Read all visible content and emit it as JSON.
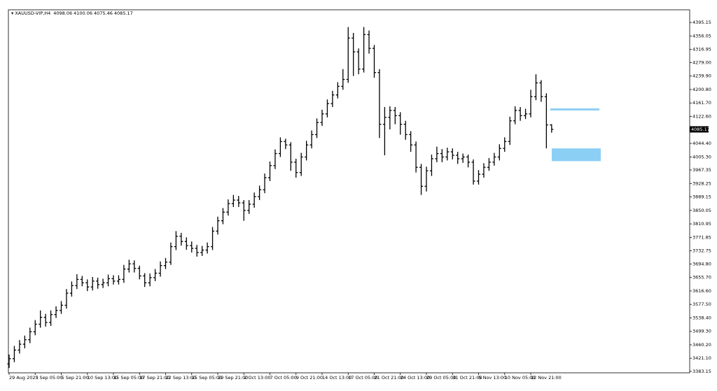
{
  "chart_data": {
    "type": "ohlc",
    "symbol": "XAUUSD-VIP,H4",
    "color": "#000000",
    "zone_color": "#8ccff5",
    "categories": [
      "29 Aug 2025",
      null,
      null,
      null,
      null,
      "3 Sep 05:00",
      null,
      null,
      null,
      null,
      "5 Sep 21:00",
      null,
      null,
      null,
      null,
      "10 Sep 13:00",
      null,
      null,
      null,
      null,
      "15 Sep 05:00",
      null,
      null,
      null,
      null,
      "17 Sep 21:00",
      null,
      null,
      null,
      null,
      "22 Sep 13:00",
      null,
      null,
      null,
      null,
      "25 Sep 05:00",
      null,
      null,
      null,
      null,
      "29 Sep 21:00",
      null,
      null,
      null,
      null,
      "2 Oct 13:00",
      null,
      null,
      null,
      null,
      "7 Oct 05:00",
      null,
      null,
      null,
      null,
      "9 Oct 21:00",
      null,
      null,
      null,
      null,
      "14 Oct 13:00",
      null,
      null,
      null,
      null,
      "17 Oct 05:00",
      null,
      null,
      null,
      null,
      "21 Oct 21:00",
      null,
      null,
      null,
      null,
      "24 Oct 13:00",
      null,
      null,
      null,
      null,
      "29 Oct 05:00",
      null,
      null,
      null,
      null,
      "31 Oct 21:00",
      null,
      null,
      null,
      null,
      "5 Nov 13:00",
      null,
      null,
      null,
      null,
      "10 Nov 05:00",
      null,
      null,
      null,
      null,
      "12 Nov 21:00",
      null,
      null,
      null,
      null
    ],
    "open": [
      3405,
      3420,
      3445,
      3462,
      3475,
      3498,
      3520,
      3540,
      3525,
      3548,
      3560,
      3575,
      3610,
      3632,
      3650,
      3640,
      3628,
      3645,
      3635,
      3640,
      3652,
      3645,
      3650,
      3680,
      3695,
      3682,
      3660,
      3640,
      3655,
      3668,
      3690,
      3700,
      3745,
      3775,
      3760,
      3748,
      3740,
      3728,
      3735,
      3745,
      3790,
      3820,
      3845,
      3870,
      3880,
      3872,
      3850,
      3868,
      3890,
      3910,
      3945,
      3980,
      4015,
      4050,
      4040,
      3990,
      3960,
      4005,
      4040,
      4070,
      4105,
      4130,
      4160,
      4185,
      4210,
      4230,
      4350,
      4310,
      4260,
      4360,
      4320,
      4250,
      4100,
      4120,
      4140,
      4125,
      4100,
      4070,
      4040,
      3975,
      3920,
      3965,
      4000,
      4015,
      4005,
      4020,
      4010,
      4000,
      4005,
      3990,
      3935,
      3955,
      3975,
      3990,
      4005,
      4030,
      4050,
      4110,
      4140,
      4125,
      4130,
      4180,
      4220,
      4180,
      4098.06
    ],
    "high": [
      3432,
      3457,
      3474,
      3487,
      3510,
      3532,
      3560,
      3550,
      3560,
      3572,
      3587,
      3622,
      3644,
      3665,
      3660,
      3650,
      3657,
      3655,
      3652,
      3664,
      3662,
      3662,
      3692,
      3707,
      3705,
      3690,
      3668,
      3667,
      3680,
      3702,
      3712,
      3757,
      3790,
      3785,
      3772,
      3760,
      3750,
      3747,
      3757,
      3802,
      3832,
      3857,
      3882,
      3895,
      3892,
      3880,
      3880,
      3902,
      3922,
      3957,
      3992,
      4027,
      4062,
      4058,
      4048,
      4000,
      4017,
      4052,
      4082,
      4117,
      4142,
      4172,
      4197,
      4222,
      4260,
      4382,
      4365,
      4320,
      4382,
      4372,
      4330,
      4260,
      4150,
      4152,
      4150,
      4135,
      4110,
      4080,
      4050,
      3985,
      3977,
      4012,
      4035,
      4028,
      4032,
      4030,
      4020,
      4015,
      4012,
      3998,
      3967,
      3987,
      4002,
      4017,
      4042,
      4062,
      4122,
      4152,
      4150,
      4145,
      4200,
      4245,
      4228,
      4190,
      4100.06
    ],
    "low": [
      3393,
      3410,
      3435,
      3450,
      3465,
      3488,
      3510,
      3513,
      3515,
      3538,
      3550,
      3565,
      3600,
      3622,
      3630,
      3616,
      3618,
      3623,
      3625,
      3630,
      3635,
      3635,
      3640,
      3670,
      3670,
      3650,
      3628,
      3630,
      3645,
      3658,
      3680,
      3692,
      3735,
      3748,
      3736,
      3728,
      3716,
      3718,
      3725,
      3735,
      3780,
      3810,
      3835,
      3860,
      3860,
      3820,
      3840,
      3858,
      3880,
      3900,
      3935,
      3970,
      4005,
      4028,
      3965,
      3945,
      3950,
      3995,
      4030,
      4060,
      4095,
      4120,
      4150,
      4175,
      4200,
      4220,
      4240,
      4245,
      4250,
      4305,
      4235,
      4060,
      4010,
      4085,
      4100,
      4070,
      4055,
      4020,
      3960,
      3895,
      3905,
      3950,
      3990,
      3990,
      3995,
      3998,
      3985,
      3988,
      3975,
      3925,
      3925,
      3945,
      3965,
      3980,
      3995,
      4020,
      4040,
      4100,
      4110,
      4115,
      4120,
      4170,
      4165,
      4030,
      4075.46
    ],
    "close": [
      3420,
      3445,
      3462,
      3475,
      3498,
      3520,
      3540,
      3525,
      3548,
      3560,
      3575,
      3610,
      3632,
      3650,
      3640,
      3628,
      3645,
      3635,
      3640,
      3652,
      3645,
      3650,
      3680,
      3695,
      3682,
      3660,
      3640,
      3655,
      3668,
      3690,
      3700,
      3745,
      3775,
      3760,
      3748,
      3740,
      3728,
      3735,
      3745,
      3790,
      3820,
      3845,
      3870,
      3880,
      3872,
      3850,
      3868,
      3890,
      3910,
      3945,
      3980,
      4015,
      4050,
      4040,
      3990,
      3960,
      4005,
      4040,
      4070,
      4105,
      4130,
      4160,
      4185,
      4210,
      4230,
      4350,
      4310,
      4260,
      4360,
      4320,
      4250,
      4100,
      4120,
      4140,
      4125,
      4100,
      4070,
      4040,
      3975,
      3920,
      3965,
      4000,
      4015,
      4005,
      4020,
      4010,
      4000,
      4005,
      3990,
      3935,
      3955,
      3975,
      3990,
      4005,
      4030,
      4050,
      4110,
      4140,
      4125,
      4130,
      4180,
      4220,
      4180,
      4098.06,
      4085.17
    ],
    "ylim": [
      3379,
      4432
    ],
    "yticks": [
      {
        "value": 4395.15,
        "label": "4395.15"
      },
      {
        "value": 4356.05,
        "label": "4356.05"
      },
      {
        "value": 4316.95,
        "label": "4316.95"
      },
      {
        "value": 4279.0,
        "label": "4279.00"
      },
      {
        "value": 4239.9,
        "label": "4239.90"
      },
      {
        "value": 4200.8,
        "label": "4200.80"
      },
      {
        "value": 4161.7,
        "label": "4161.70"
      },
      {
        "value": 4122.6,
        "label": "4122.60"
      },
      {
        "value": 4044.4,
        "label": "4044.40"
      },
      {
        "value": 4005.3,
        "label": "4005.30"
      },
      {
        "value": 3967.35,
        "label": "3967.35"
      },
      {
        "value": 3928.25,
        "label": "3928.25"
      },
      {
        "value": 3889.15,
        "label": "3889.15"
      },
      {
        "value": 3850.05,
        "label": "3850.05"
      },
      {
        "value": 3810.95,
        "label": "3810.95"
      },
      {
        "value": 3771.85,
        "label": "3771.85"
      },
      {
        "value": 3732.75,
        "label": "3732.75"
      },
      {
        "value": 3694.8,
        "label": "3694.80"
      },
      {
        "value": 3655.7,
        "label": "3655.70"
      },
      {
        "value": 3616.6,
        "label": "3616.60"
      },
      {
        "value": 3577.5,
        "label": "3577.50"
      },
      {
        "value": 3538.4,
        "label": "3538.40"
      },
      {
        "value": 3499.3,
        "label": "3499.30"
      },
      {
        "value": 3460.2,
        "label": "3460.20"
      },
      {
        "value": 3421.1,
        "label": "3421.10"
      },
      {
        "value": 3383.15,
        "label": "3383.15"
      }
    ],
    "zones": [
      {
        "top": 4146,
        "bottom": 4140
      },
      {
        "top": 4030,
        "bottom": 3993
      }
    ],
    "grid": false
  }
}
